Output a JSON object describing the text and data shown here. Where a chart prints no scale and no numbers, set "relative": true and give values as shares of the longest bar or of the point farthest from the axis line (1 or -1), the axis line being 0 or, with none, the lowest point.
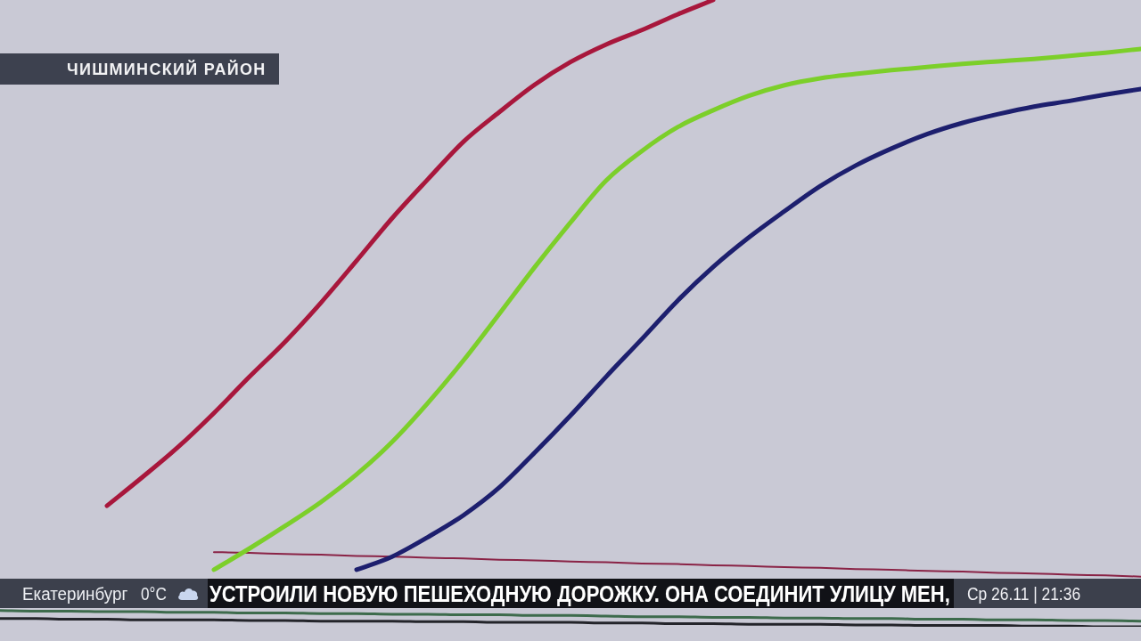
{
  "chart_data": {
    "type": "line",
    "relative": true,
    "marker": "none",
    "categories": [
      null,
      null,
      null,
      null,
      null,
      null,
      null,
      null,
      null,
      null,
      null,
      null,
      null,
      null,
      null,
      null,
      null,
      null,
      null,
      null,
      null,
      null,
      null,
      null,
      null,
      null,
      null,
      null,
      null,
      null,
      null,
      null,
      null
    ],
    "series": [
      {
        "color": "#a8173c",
        "values": [
          null,
          null,
          null,
          0.193,
          0.239,
          0.287,
          0.341,
          0.399,
          0.455,
          0.517,
          0.584,
          0.652,
          0.714,
          0.774,
          0.821,
          0.865,
          0.901,
          0.929,
          0.952,
          0.977,
          1,
          null,
          null,
          null,
          null,
          null,
          null,
          null,
          null,
          null,
          null,
          null,
          null
        ]
      },
      {
        "color": "#7ccf2a",
        "values": [
          null,
          null,
          null,
          null,
          null,
          null,
          0.091,
          0.125,
          0.161,
          0.199,
          0.243,
          0.295,
          0.357,
          0.425,
          0.499,
          0.574,
          0.645,
          0.712,
          0.759,
          0.797,
          0.824,
          0.847,
          0.864,
          0.875,
          0.882,
          0.888,
          0.893,
          0.898,
          0.902,
          0.906,
          0.911,
          0.916,
          0.922
        ]
      },
      {
        "color": "#1d1f6e",
        "values": [
          null,
          null,
          null,
          null,
          null,
          null,
          null,
          null,
          null,
          null,
          0.091,
          0.112,
          0.143,
          0.178,
          0.222,
          0.278,
          0.337,
          0.399,
          0.459,
          0.52,
          0.574,
          0.621,
          0.663,
          0.703,
          0.736,
          0.763,
          0.786,
          0.804,
          0.818,
          0.83,
          0.839,
          0.849,
          0.858
        ]
      },
      {
        "color": "#8a2346",
        "values": [
          null,
          null,
          null,
          null,
          null,
          null,
          0.119,
          0.118,
          0.116,
          0.115,
          0.113,
          0.112,
          0.11,
          0.109,
          0.107,
          0.106,
          0.104,
          0.103,
          0.101,
          0.1,
          0.098,
          0.097,
          0.095,
          0.094,
          0.092,
          0.091,
          0.089,
          0.088,
          0.086,
          0.085,
          0.083,
          0.082,
          0.08
        ]
      },
      {
        "color": "#3d6b4c",
        "values": [
          0.026,
          0.025,
          0.025,
          0.024,
          0.024,
          0.023,
          0.023,
          0.022,
          0.022,
          0.021,
          0.021,
          0.02,
          0.02,
          0.019,
          0.019,
          0.018,
          0.018,
          0.017,
          0.016,
          0.016,
          0.015,
          0.015,
          0.014,
          0.014,
          0.013,
          0.013,
          0.012,
          0.012,
          0.011,
          0.011,
          0.01,
          0.01,
          0.009
        ]
      },
      {
        "color": "#23242a",
        "values": [
          0.013,
          0.013,
          0.012,
          0.012,
          0.011,
          0.011,
          0.011,
          0.01,
          0.01,
          0.009,
          0.009,
          0.009,
          0.008,
          0.008,
          0.007,
          0.007,
          0.007,
          0.006,
          0.006,
          0.005,
          0.005,
          0.004,
          0.004,
          0.004,
          0.003,
          0.003,
          0.002,
          0.002,
          0.002,
          0.001,
          0.001,
          0,
          0
        ]
      }
    ],
    "annotations": [
      "ЧИШМИНСКИЙ РАЙОН",
      "Екатеринбург",
      "0°C",
      "УСТРОИЛИ НОВУЮ ПЕШЕХОДНУЮ ДОРОЖКУ. ОНА СОЕДИНИТ УЛИЦУ МЕН,",
      "Ср 26.11 | 21:36"
    ]
  }
}
